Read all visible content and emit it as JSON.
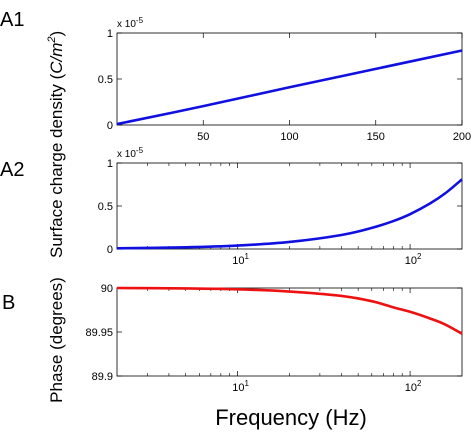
{
  "figure": {
    "xlabel": "Frequency (Hz)",
    "ylabel_top": "Surface charge density (C/m²)",
    "ylabel_top_text": "Surface charge density (",
    "ylabel_top_unit": "C/m",
    "ylabel_top_sup": "2",
    "ylabel_top_close": ")",
    "ylabel_bottom": "Phase (degrees)"
  },
  "chart_data": [
    {
      "panel_label": "A1",
      "type": "line",
      "xscale": "linear",
      "xlim": [
        0,
        200
      ],
      "ylim": [
        0,
        1
      ],
      "y_multiplier": "x 10",
      "y_multiplier_exponent": "-5",
      "xticks": [
        50,
        100,
        150,
        200
      ],
      "xtick_labels": [
        "50",
        "100",
        "150",
        "200"
      ],
      "yticks": [
        0,
        0.5,
        1
      ],
      "ytick_labels": [
        "0",
        "0.5",
        "1"
      ],
      "color": "#1010e0",
      "x": [
        0,
        50,
        100,
        150,
        200
      ],
      "y": [
        0.01,
        0.205,
        0.41,
        0.61,
        0.81
      ]
    },
    {
      "panel_label": "A2",
      "type": "line",
      "xscale": "log",
      "xlim": [
        2,
        200
      ],
      "ylim": [
        0,
        1
      ],
      "y_multiplier": "x 10",
      "y_multiplier_exponent": "-5",
      "xticks": [
        10,
        100
      ],
      "xtick_labels": [
        {
          "base": "10",
          "exp": "1"
        },
        {
          "base": "10",
          "exp": "2"
        }
      ],
      "yticks": [
        0,
        0.5,
        1
      ],
      "ytick_labels": [
        "0",
        "0.5",
        "1"
      ],
      "color": "#1010e0",
      "x": [
        2,
        5,
        10,
        20,
        40,
        60,
        80,
        100,
        130,
        160,
        200
      ],
      "y": [
        0.008,
        0.02,
        0.04,
        0.082,
        0.163,
        0.245,
        0.325,
        0.405,
        0.527,
        0.648,
        0.81
      ]
    },
    {
      "panel_label": "B",
      "type": "line",
      "xscale": "log",
      "xlim": [
        2,
        200
      ],
      "ylim": [
        89.9,
        90
      ],
      "xticks": [
        10,
        100
      ],
      "xtick_labels": [
        {
          "base": "10",
          "exp": "1"
        },
        {
          "base": "10",
          "exp": "2"
        }
      ],
      "yticks": [
        89.9,
        89.95,
        90
      ],
      "ytick_labels": [
        "89.9",
        "89.95",
        "90"
      ],
      "color": "#ee1111",
      "x": [
        2,
        5,
        10,
        20,
        40,
        60,
        80,
        100,
        130,
        160,
        200
      ],
      "y": [
        90.0,
        89.9995,
        89.9985,
        89.996,
        89.991,
        89.985,
        89.978,
        89.973,
        89.9655,
        89.9585,
        89.948
      ]
    }
  ]
}
